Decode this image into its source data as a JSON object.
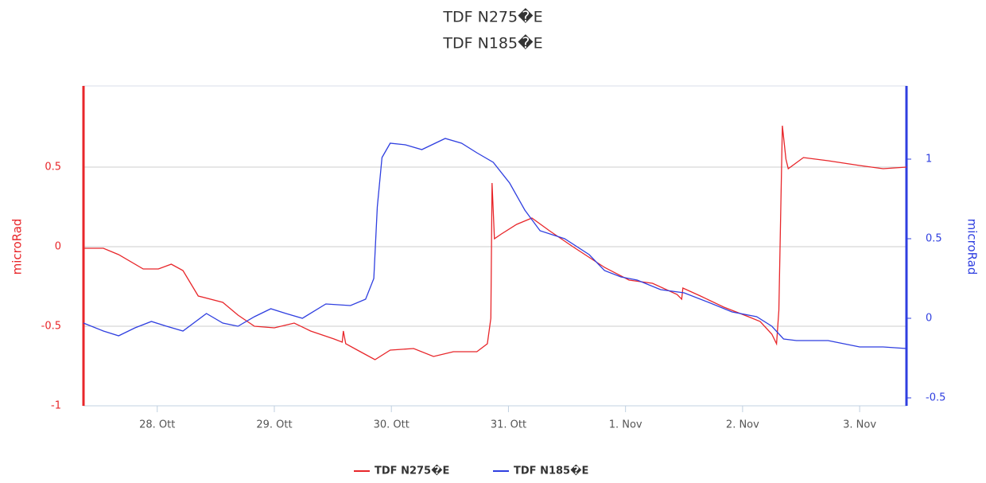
{
  "chart_data": {
    "type": "line",
    "title": "TDF N275�E",
    "subtitle": "TDF N185�E",
    "ylabel": "microRad",
    "y2label": "microRad",
    "xlim": [
      -0.63,
      6.4
    ],
    "xticks": [
      {
        "value": 0,
        "label": "28. Ott"
      },
      {
        "value": 1,
        "label": "29. Ott"
      },
      {
        "value": 2,
        "label": "30. Ott"
      },
      {
        "value": 3,
        "label": "31. Ott"
      },
      {
        "value": 4,
        "label": "1. Nov"
      },
      {
        "value": 5,
        "label": "2. Nov"
      },
      {
        "value": 6,
        "label": "3. Nov"
      }
    ],
    "ylim": [
      -1,
      1.01
    ],
    "yticks": [
      -1,
      -0.5,
      0,
      0.5
    ],
    "y2lim": [
      -0.55,
      1.46
    ],
    "y2ticks": [
      -0.5,
      0,
      0.5,
      1
    ],
    "grid": true,
    "legend": "bottom",
    "series": [
      {
        "name": "TDF N275�E",
        "color": "#e8262a",
        "axis": "y",
        "x": [
          -0.63,
          -0.46,
          -0.33,
          -0.12,
          0.01,
          0.12,
          0.22,
          0.35,
          0.56,
          0.69,
          0.83,
          1.0,
          1.17,
          1.31,
          1.51,
          1.58,
          1.59,
          1.61,
          1.71,
          1.86,
          1.99,
          2.19,
          2.36,
          2.53,
          2.73,
          2.82,
          2.85,
          2.86,
          2.88,
          2.94,
          3.07,
          3.2,
          3.35,
          3.55,
          3.82,
          4.03,
          4.23,
          4.44,
          4.48,
          4.49,
          4.64,
          4.84,
          5.05,
          5.15,
          5.25,
          5.29,
          5.31,
          5.34,
          5.37,
          5.39,
          5.52,
          5.73,
          6.0,
          6.2,
          6.4
        ],
        "values": [
          -0.01,
          -0.01,
          -0.05,
          -0.14,
          -0.14,
          -0.11,
          -0.15,
          -0.31,
          -0.35,
          -0.43,
          -0.5,
          -0.51,
          -0.48,
          -0.53,
          -0.58,
          -0.6,
          -0.53,
          -0.61,
          -0.65,
          -0.71,
          -0.65,
          -0.64,
          -0.69,
          -0.66,
          -0.66,
          -0.61,
          -0.45,
          0.4,
          0.05,
          0.08,
          0.14,
          0.18,
          0.1,
          0,
          -0.13,
          -0.21,
          -0.23,
          -0.3,
          -0.33,
          -0.26,
          -0.31,
          -0.38,
          -0.44,
          -0.47,
          -0.55,
          -0.61,
          -0.4,
          0.76,
          0.55,
          0.49,
          0.56,
          0.54,
          0.51,
          0.49,
          0.5
        ]
      },
      {
        "name": "TDF N185�E",
        "color": "#2f3fe0",
        "axis": "y2",
        "x": [
          -0.63,
          -0.46,
          -0.33,
          -0.19,
          -0.05,
          0.08,
          0.22,
          0.42,
          0.56,
          0.69,
          0.83,
          0.97,
          1.1,
          1.24,
          1.44,
          1.65,
          1.78,
          1.85,
          1.88,
          1.92,
          1.99,
          2.12,
          2.26,
          2.46,
          2.6,
          2.73,
          2.87,
          3.01,
          3.14,
          3.27,
          3.48,
          3.69,
          3.82,
          3.96,
          4.1,
          4.3,
          4.5,
          4.71,
          4.91,
          5.12,
          5.25,
          5.35,
          5.46,
          5.73,
          6.0,
          6.2,
          6.4
        ],
        "values": [
          -0.03,
          -0.08,
          -0.11,
          -0.06,
          -0.02,
          -0.05,
          -0.08,
          0.03,
          -0.03,
          -0.05,
          0.01,
          0.06,
          0.03,
          0,
          0.09,
          0.08,
          0.12,
          0.25,
          0.7,
          1.01,
          1.1,
          1.09,
          1.06,
          1.13,
          1.1,
          1.04,
          0.98,
          0.85,
          0.68,
          0.55,
          0.5,
          0.4,
          0.3,
          0.26,
          0.24,
          0.18,
          0.16,
          0.1,
          0.04,
          0.01,
          -0.05,
          -0.13,
          -0.14,
          -0.14,
          -0.18,
          -0.18,
          -0.19
        ]
      }
    ]
  }
}
